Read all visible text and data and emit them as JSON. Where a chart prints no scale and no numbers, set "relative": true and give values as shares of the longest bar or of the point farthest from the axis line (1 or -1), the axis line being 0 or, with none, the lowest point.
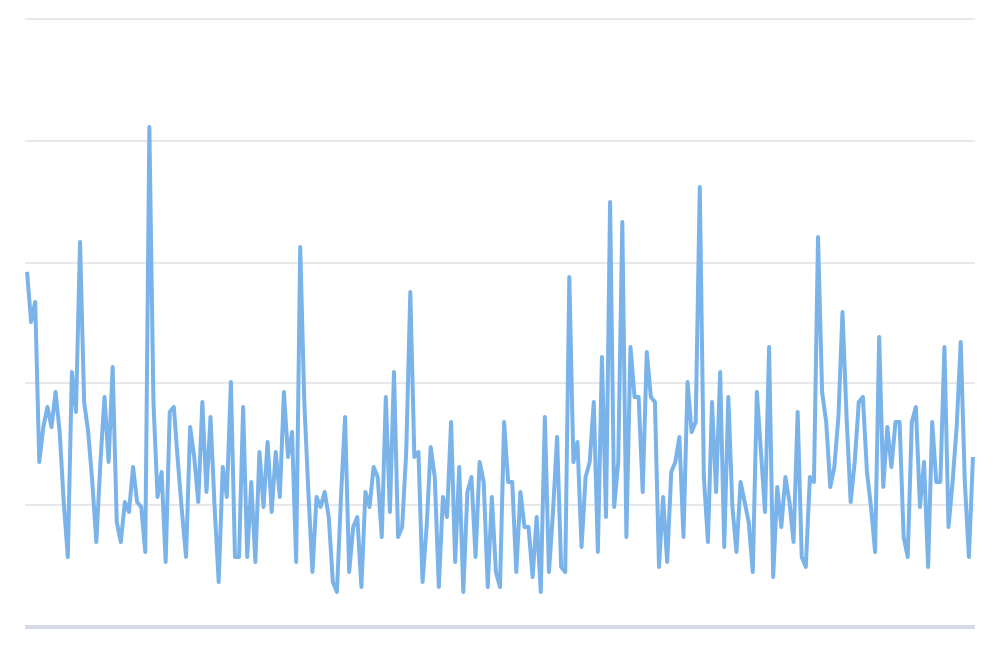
{
  "chart_data": {
    "type": "line",
    "relative": true,
    "grid": "y",
    "marker": "none",
    "line_style": "solid",
    "categories": [
      null,
      null,
      null,
      null,
      null,
      null,
      null,
      null,
      null,
      null,
      null,
      null,
      null,
      null,
      null,
      null,
      null,
      null,
      null,
      null,
      null,
      null,
      null,
      null,
      null,
      null,
      null,
      null,
      null,
      null,
      null,
      null,
      null,
      null,
      null,
      null,
      null,
      null,
      null,
      null,
      null,
      null,
      null,
      null,
      null,
      null,
      null,
      null,
      null,
      null,
      null,
      null,
      null,
      null,
      null,
      null,
      null,
      null,
      null,
      null,
      null,
      null,
      null,
      null,
      null,
      null,
      null,
      null,
      null,
      null,
      null,
      null,
      null,
      null,
      null,
      null,
      null,
      null,
      null,
      null,
      null,
      null,
      null,
      null,
      null,
      null,
      null,
      null,
      null,
      null,
      null,
      null,
      null,
      null,
      null,
      null,
      null,
      null,
      null,
      null,
      null,
      null,
      null,
      null,
      null,
      null,
      null,
      null,
      null,
      null,
      null,
      null,
      null,
      null,
      null,
      null,
      null,
      null,
      null,
      null,
      null,
      null,
      null,
      null,
      null,
      null,
      null,
      null,
      null,
      null,
      null,
      null,
      null,
      null,
      null,
      null,
      null,
      null,
      null,
      null,
      null,
      null,
      null,
      null,
      null,
      null,
      null,
      null,
      null,
      null,
      null,
      null,
      null,
      null,
      null,
      null,
      null,
      null,
      null,
      null,
      null,
      null,
      null,
      null,
      null,
      null,
      null,
      null,
      null,
      null,
      null,
      null,
      null,
      null,
      null,
      null,
      null,
      null,
      null,
      null,
      null,
      null,
      null,
      null,
      null,
      null,
      null,
      null,
      null,
      null,
      null,
      null,
      null,
      null,
      null,
      null,
      null,
      null,
      null,
      null,
      null,
      null,
      null,
      null,
      null,
      null,
      null,
      null,
      null,
      null,
      null,
      null,
      null,
      null,
      null,
      null,
      null,
      null,
      null,
      null,
      null,
      null,
      null,
      null,
      null,
      null,
      null,
      null,
      null,
      null,
      null,
      null,
      null
    ],
    "series": [
      {
        "color": "#7ab3ea",
        "values": [
          0.71,
          0.61,
          0.65,
          0.33,
          0.4,
          0.44,
          0.4,
          0.47,
          0.39,
          0.25,
          0.14,
          0.51,
          0.43,
          0.77,
          0.45,
          0.39,
          0.29,
          0.17,
          0.33,
          0.46,
          0.33,
          0.52,
          0.21,
          0.17,
          0.25,
          0.23,
          0.32,
          0.25,
          0.24,
          0.15,
          1.0,
          0.45,
          0.26,
          0.31,
          0.13,
          0.43,
          0.44,
          0.33,
          0.23,
          0.14,
          0.4,
          0.34,
          0.25,
          0.45,
          0.27,
          0.42,
          0.24,
          0.09,
          0.32,
          0.26,
          0.49,
          0.14,
          0.14,
          0.44,
          0.14,
          0.29,
          0.13,
          0.35,
          0.24,
          0.37,
          0.23,
          0.35,
          0.26,
          0.47,
          0.34,
          0.39,
          0.13,
          0.76,
          0.45,
          0.27,
          0.11,
          0.26,
          0.24,
          0.27,
          0.22,
          0.09,
          0.07,
          0.26,
          0.42,
          0.11,
          0.2,
          0.22,
          0.08,
          0.27,
          0.24,
          0.32,
          0.3,
          0.18,
          0.46,
          0.23,
          0.51,
          0.18,
          0.2,
          0.35,
          0.67,
          0.34,
          0.35,
          0.09,
          0.2,
          0.36,
          0.3,
          0.08,
          0.26,
          0.22,
          0.41,
          0.13,
          0.32,
          0.07,
          0.27,
          0.3,
          0.14,
          0.33,
          0.29,
          0.08,
          0.26,
          0.11,
          0.08,
          0.41,
          0.29,
          0.29,
          0.11,
          0.27,
          0.2,
          0.2,
          0.1,
          0.22,
          0.07,
          0.42,
          0.11,
          0.23,
          0.38,
          0.12,
          0.11,
          0.7,
          0.33,
          0.37,
          0.16,
          0.3,
          0.33,
          0.45,
          0.15,
          0.54,
          0.22,
          0.85,
          0.24,
          0.33,
          0.81,
          0.18,
          0.56,
          0.46,
          0.46,
          0.27,
          0.55,
          0.46,
          0.45,
          0.12,
          0.26,
          0.13,
          0.31,
          0.33,
          0.38,
          0.18,
          0.49,
          0.39,
          0.41,
          0.88,
          0.3,
          0.17,
          0.45,
          0.27,
          0.51,
          0.16,
          0.46,
          0.24,
          0.15,
          0.29,
          0.25,
          0.21,
          0.11,
          0.47,
          0.35,
          0.23,
          0.56,
          0.1,
          0.28,
          0.2,
          0.3,
          0.25,
          0.17,
          0.43,
          0.14,
          0.12,
          0.3,
          0.29,
          0.78,
          0.47,
          0.41,
          0.28,
          0.32,
          0.42,
          0.63,
          0.42,
          0.25,
          0.33,
          0.45,
          0.46,
          0.31,
          0.24,
          0.15,
          0.58,
          0.28,
          0.4,
          0.32,
          0.41,
          0.41,
          0.18,
          0.14,
          0.41,
          0.44,
          0.24,
          0.33,
          0.12,
          0.41,
          0.29,
          0.29,
          0.56,
          0.2,
          0.29,
          0.4,
          0.57,
          0.29,
          0.14,
          0.34
        ]
      }
    ]
  }
}
